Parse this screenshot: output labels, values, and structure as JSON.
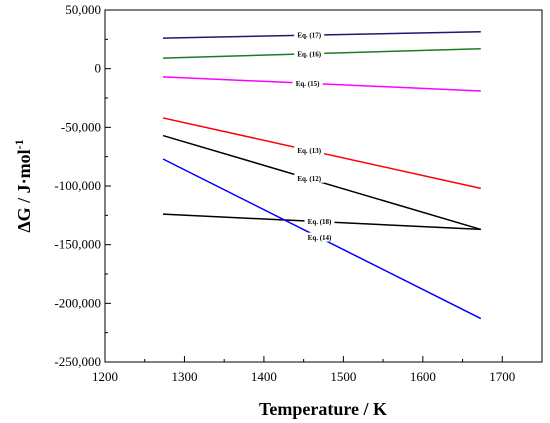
{
  "chart_data": {
    "type": "line",
    "title": "",
    "xlabel": "Temperature / K",
    "ylabel": {
      "main": "ΔG / J·mol",
      "superscript": "-1"
    },
    "xlim": [
      1200,
      1750
    ],
    "ylim": [
      -250000,
      50000
    ],
    "xticks": [
      1200,
      1300,
      1400,
      1500,
      1600,
      1700
    ],
    "yticks": [
      50000,
      0,
      -50000,
      -100000,
      -150000,
      -200000,
      -250000
    ],
    "xtick_labels": [
      "1200",
      "1300",
      "1400",
      "1500",
      "1600",
      "1700"
    ],
    "ytick_labels": [
      "50,000",
      "0",
      "-50,000",
      "-100,000",
      "-150,000",
      "-200,000",
      "-250,000"
    ],
    "grid": false,
    "series": [
      {
        "name": "Eq. (17)",
        "color": "#1a1a6e",
        "x": [
          1273,
          1673
        ],
        "y": [
          26000,
          31500
        ],
        "label_at": 1457
      },
      {
        "name": "Eq. (16)",
        "color": "#1e7a1e",
        "x": [
          1273,
          1673
        ],
        "y": [
          9000,
          17000
        ],
        "label_at": 1457
      },
      {
        "name": "Eq. (15)",
        "color": "#ff00ff",
        "x": [
          1273,
          1673
        ],
        "y": [
          -7000,
          -19000
        ],
        "label_at": 1455
      },
      {
        "name": "Eq. (13)",
        "color": "#ff0000",
        "x": [
          1273,
          1673
        ],
        "y": [
          -42000,
          -102000
        ],
        "label_at": 1457
      },
      {
        "name": "Eq. (12)",
        "color": "#000000",
        "x": [
          1273,
          1673
        ],
        "y": [
          -57000,
          -137000
        ],
        "label_at": 1457
      },
      {
        "name": "Eq. (18)",
        "color": "#000000",
        "x": [
          1273,
          1673
        ],
        "y": [
          -124000,
          -137000
        ],
        "label_at": 1470
      },
      {
        "name": "Eq. (14)",
        "color": "#0000ff",
        "x": [
          1273,
          1673
        ],
        "y": [
          -77000,
          -213000
        ],
        "label_at": 1470
      }
    ]
  }
}
